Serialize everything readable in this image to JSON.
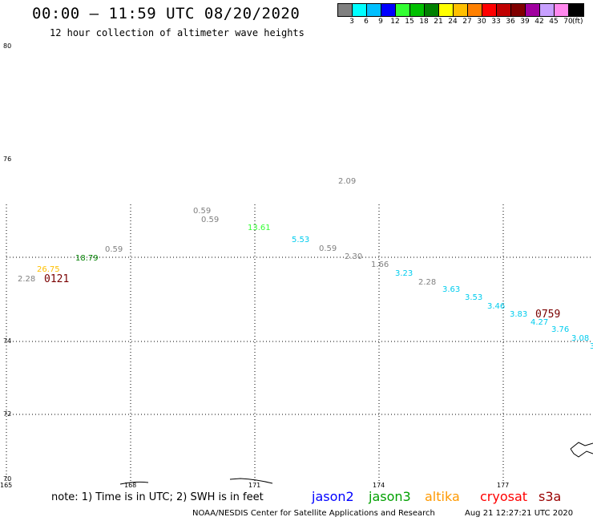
{
  "header": {
    "title": "00:00 – 11:59 UTC 08/20/2020",
    "subtitle": "12 hour collection of altimeter wave heights"
  },
  "colorbar": {
    "colors": [
      "#808080",
      "#00ffff",
      "#00bfff",
      "#0000ff",
      "#33ff33",
      "#00c000",
      "#008000",
      "#ffff00",
      "#ffc000",
      "#ff8000",
      "#ff0000",
      "#c00000",
      "#800000",
      "#a0009f",
      "#c8a0ff",
      "#ff88ee",
      "#000000"
    ],
    "labels": [
      "3",
      "6",
      "9",
      "12",
      "15",
      "18",
      "21",
      "24",
      "27",
      "30",
      "33",
      "36",
      "39",
      "42",
      "45",
      "70"
    ],
    "unit": "(ft)"
  },
  "map": {
    "lat_labels": [
      "80",
      "76",
      "74",
      "72",
      "70"
    ],
    "lon_labels": [
      "165",
      "168",
      "171",
      "174",
      "177"
    ],
    "wave_values": [
      {
        "text": "2.09",
        "color": "#808080"
      },
      {
        "text": "0.59",
        "color": "#808080"
      },
      {
        "text": "0.59",
        "color": "#808080"
      },
      {
        "text": "13.61",
        "color": "#33ff33"
      },
      {
        "text": "5.53",
        "color": "#00ccee"
      },
      {
        "text": "0.59",
        "color": "#808080"
      },
      {
        "text": "2.30",
        "color": "#808080"
      },
      {
        "text": "0.59",
        "color": "#808080"
      },
      {
        "text": "18.79",
        "color": "#008000"
      },
      {
        "text": "26.75",
        "color": "#ffc000"
      },
      {
        "text": "2.28",
        "color": "#808080"
      },
      {
        "text": "1.66",
        "color": "#808080"
      },
      {
        "text": "3.23",
        "color": "#00ccee"
      },
      {
        "text": "2.28",
        "color": "#808080"
      },
      {
        "text": "3.63",
        "color": "#00ccee"
      },
      {
        "text": "3.53",
        "color": "#00ccee"
      },
      {
        "text": "3.46",
        "color": "#00ccee"
      },
      {
        "text": "3.83",
        "color": "#00ccee"
      },
      {
        "text": "4.27",
        "color": "#00ccee"
      },
      {
        "text": "3.76",
        "color": "#00ccee"
      },
      {
        "text": "3.08",
        "color": "#00ccee"
      }
    ],
    "time_labels": [
      "0121",
      "0759"
    ]
  },
  "note": "note: 1) Time is in UTC; 2) SWH is in feet",
  "satellites": [
    {
      "name": "jason2",
      "color": "#0000ff"
    },
    {
      "name": "jason3",
      "color": "#00a000"
    },
    {
      "name": "altika",
      "color": "#ff9900"
    },
    {
      "name": "cryosat",
      "color": "#ff0000"
    },
    {
      "name": "s3a",
      "color": "#990000"
    }
  ],
  "footer": {
    "credit": "NOAA/NESDIS Center for Satellite Applications and Research",
    "timestamp": "Aug 21 12:27:21 UTC 2020"
  }
}
